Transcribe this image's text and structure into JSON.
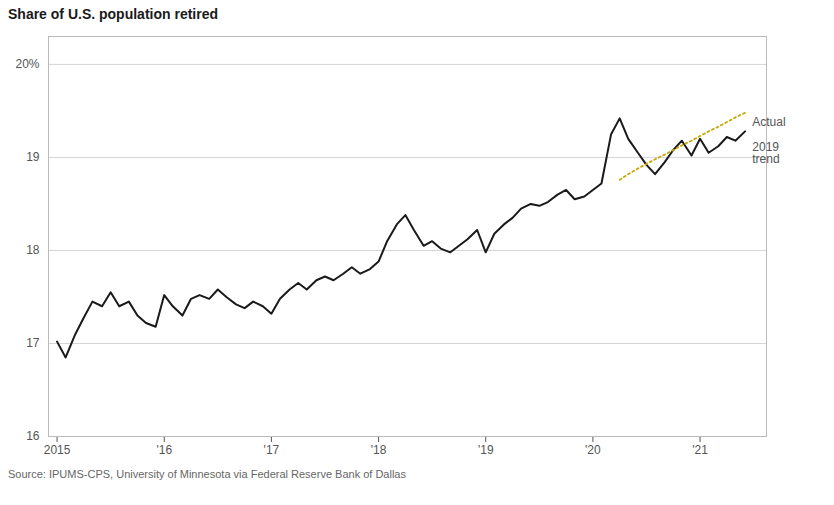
{
  "chart_data": {
    "type": "line",
    "title": "Share of U.S. population retired",
    "caption": "Source: IPUMS-CPS, University of Minnesota via Federal Reserve Bank of Dallas",
    "xlim": [
      2014.92,
      2021.62
    ],
    "xticks": [
      2015,
      {
        "value": 2016,
        "label": "'16"
      },
      {
        "value": 2017,
        "label": "'17"
      },
      {
        "value": 2018,
        "label": "'18"
      },
      {
        "value": 2019,
        "label": "'19"
      },
      {
        "value": 2020,
        "label": "'20"
      },
      {
        "value": 2021,
        "label": "'21"
      }
    ],
    "ylim": [
      16,
      20.3
    ],
    "yticks": [
      16,
      17,
      18,
      19,
      {
        "value": 20,
        "label": "20%"
      }
    ],
    "grid": "y",
    "series": [
      {
        "name": "Actual",
        "color": "#1a1a1a",
        "line_style": "solid",
        "x": [
          2015.0,
          2015.08,
          2015.17,
          2015.25,
          2015.33,
          2015.42,
          2015.5,
          2015.58,
          2015.67,
          2015.75,
          2015.83,
          2015.92,
          2016.0,
          2016.08,
          2016.17,
          2016.25,
          2016.33,
          2016.42,
          2016.5,
          2016.58,
          2016.67,
          2016.75,
          2016.83,
          2016.92,
          2017.0,
          2017.08,
          2017.17,
          2017.25,
          2017.33,
          2017.42,
          2017.5,
          2017.58,
          2017.67,
          2017.75,
          2017.83,
          2017.92,
          2018.0,
          2018.08,
          2018.17,
          2018.25,
          2018.33,
          2018.42,
          2018.5,
          2018.58,
          2018.67,
          2018.75,
          2018.83,
          2018.92,
          2019.0,
          2019.08,
          2019.17,
          2019.25,
          2019.33,
          2019.42,
          2019.5,
          2019.58,
          2019.67,
          2019.75,
          2019.83,
          2019.92,
          2020.0,
          2020.08,
          2020.17,
          2020.25,
          2020.33,
          2020.42,
          2020.5,
          2020.58,
          2020.67,
          2020.75,
          2020.83,
          2020.92,
          2021.0,
          2021.08,
          2021.17,
          2021.25,
          2021.33,
          2021.42
        ],
        "values": [
          17.02,
          16.85,
          17.1,
          17.28,
          17.45,
          17.4,
          17.55,
          17.4,
          17.45,
          17.3,
          17.22,
          17.18,
          17.52,
          17.4,
          17.3,
          17.48,
          17.52,
          17.48,
          17.58,
          17.5,
          17.42,
          17.38,
          17.45,
          17.4,
          17.32,
          17.48,
          17.58,
          17.65,
          17.58,
          17.68,
          17.72,
          17.68,
          17.75,
          17.82,
          17.75,
          17.8,
          17.88,
          18.1,
          18.28,
          18.38,
          18.22,
          18.05,
          18.1,
          18.02,
          17.98,
          18.05,
          18.12,
          18.22,
          17.98,
          18.18,
          18.28,
          18.35,
          18.45,
          18.5,
          18.48,
          18.52,
          18.6,
          18.65,
          18.55,
          18.58,
          18.65,
          18.72,
          19.25,
          19.42,
          19.2,
          19.05,
          18.92,
          18.82,
          18.95,
          19.08,
          19.18,
          19.02,
          19.2,
          19.05,
          19.12,
          19.22,
          19.18,
          19.28
        ]
      },
      {
        "name": "2019\ntrend",
        "color": "#c8a800",
        "line_style": "dotted",
        "x": [
          2020.25,
          2020.33,
          2020.42,
          2020.5,
          2020.58,
          2020.67,
          2020.75,
          2020.83,
          2020.92,
          2021.0,
          2021.08,
          2021.17,
          2021.25,
          2021.33,
          2021.42
        ],
        "values": [
          18.76,
          18.82,
          18.88,
          18.93,
          18.98,
          19.03,
          19.08,
          19.13,
          19.18,
          19.23,
          19.28,
          19.33,
          19.38,
          19.43,
          19.48
        ]
      }
    ],
    "annotations": [
      {
        "text": "Actual",
        "x": 2021.45,
        "y": 19.38
      },
      {
        "text": "2019\ntrend",
        "x": 2021.45,
        "y": 19.05
      }
    ]
  }
}
